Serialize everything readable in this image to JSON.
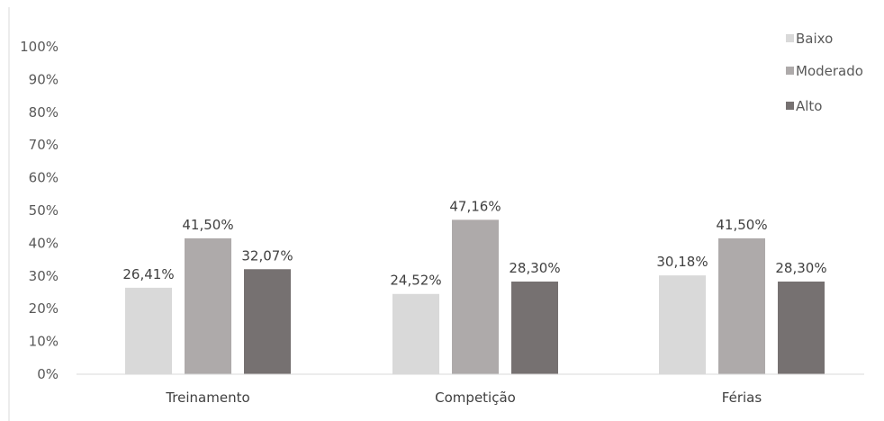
{
  "chart_data": {
    "type": "bar",
    "categories": [
      "Treinamento",
      "Competição",
      "Férias"
    ],
    "series": [
      {
        "name": "Baixo",
        "values": [
          26.41,
          24.52,
          30.18
        ],
        "labels": [
          "26,41%",
          "24,52%",
          "30,18%"
        ],
        "color": "#d9d9d9"
      },
      {
        "name": "Moderado",
        "values": [
          41.5,
          47.16,
          41.5
        ],
        "labels": [
          "41,50%",
          "47,16%",
          "41,50%"
        ],
        "color": "#aeaaaa"
      },
      {
        "name": "Alto",
        "values": [
          32.07,
          28.3,
          28.3
        ],
        "labels": [
          "32,07%",
          "28,30%",
          "28,30%"
        ],
        "color": "#767171"
      }
    ],
    "ylim": [
      0,
      100
    ],
    "yticks": [
      "0%",
      "10%",
      "20%",
      "30%",
      "40%",
      "50%",
      "60%",
      "70%",
      "80%",
      "90%",
      "100%"
    ],
    "legend_position": "top-right",
    "grid": false
  }
}
